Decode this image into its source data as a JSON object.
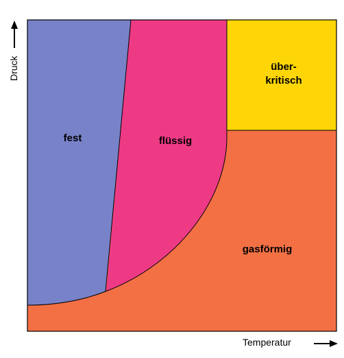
{
  "regions": {
    "solid": {
      "label": "fest",
      "color": "#7882c8"
    },
    "liquid": {
      "label": "flüssig",
      "color": "#ee3a85"
    },
    "supercritical": {
      "label_line1": "über-",
      "label_line2": "kritisch",
      "color": "#fed607"
    },
    "gas": {
      "label": "gasförmig",
      "color": "#f37045"
    }
  },
  "axes": {
    "y_label": "Druck",
    "x_label": "Temperatur"
  },
  "icons": {
    "y_arrow": "arrow-up-icon",
    "x_arrow": "arrow-right-icon"
  }
}
